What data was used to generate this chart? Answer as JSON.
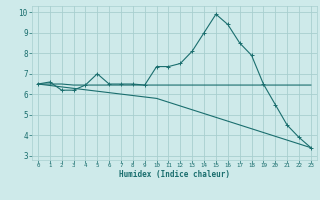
{
  "xlabel": "Humidex (Indice chaleur)",
  "ylabel": "",
  "bg_color": "#ceeaea",
  "grid_color": "#a8cfcf",
  "line_color": "#1a6e6e",
  "xlim": [
    -0.5,
    23.5
  ],
  "ylim": [
    2.8,
    10.3
  ],
  "yticks": [
    3,
    4,
    5,
    6,
    7,
    8,
    9,
    10
  ],
  "xticks": [
    0,
    1,
    2,
    3,
    4,
    5,
    6,
    7,
    8,
    9,
    10,
    11,
    12,
    13,
    14,
    15,
    16,
    17,
    18,
    19,
    20,
    21,
    22,
    23
  ],
  "line1_x": [
    0,
    1,
    2,
    3,
    4,
    5,
    6,
    7,
    8,
    9,
    10,
    11,
    12,
    13,
    14,
    15,
    16,
    17,
    18,
    19,
    20,
    21,
    22,
    23
  ],
  "line1_y": [
    6.5,
    6.6,
    6.2,
    6.2,
    6.45,
    7.0,
    6.5,
    6.5,
    6.5,
    6.45,
    7.35,
    7.35,
    7.5,
    8.1,
    9.0,
    9.9,
    9.4,
    8.5,
    7.9,
    6.5,
    5.5,
    4.5,
    3.9,
    3.4
  ],
  "line2_x": [
    0,
    1,
    2,
    3,
    4,
    5,
    6,
    7,
    8,
    9,
    10,
    11,
    12,
    13,
    14,
    15,
    16,
    17,
    18,
    19,
    20,
    21,
    22,
    23
  ],
  "line2_y": [
    6.5,
    6.5,
    6.5,
    6.45,
    6.45,
    6.45,
    6.45,
    6.45,
    6.45,
    6.45,
    6.45,
    6.45,
    6.45,
    6.45,
    6.45,
    6.45,
    6.45,
    6.45,
    6.45,
    6.45,
    6.45,
    6.45,
    6.45,
    6.45
  ],
  "line3_x": [
    0,
    10,
    23
  ],
  "line3_y": [
    6.5,
    5.8,
    3.4
  ]
}
